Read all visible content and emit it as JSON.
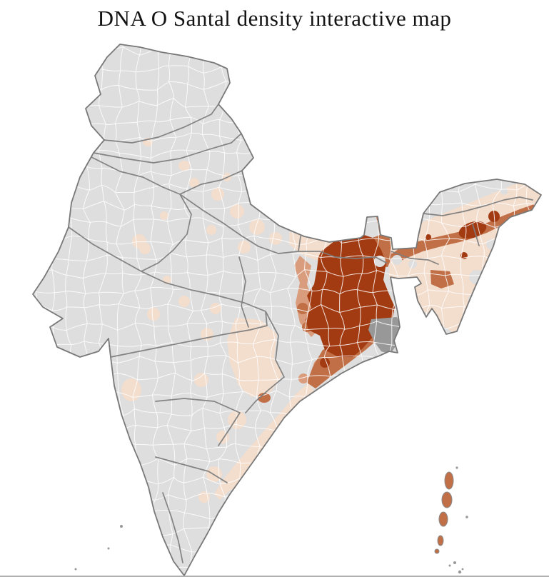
{
  "page": {
    "title": "DNA O Santal density interactive map",
    "background": "#ffffff"
  },
  "map": {
    "palette": {
      "no_data": "#dedede",
      "low": "#f3ddcd",
      "medium_low": "#d99c7c",
      "medium": "#c16f47",
      "high": "#a33b12",
      "water_delta": "#989898",
      "district_border": "#ffffff",
      "state_border": "#7d7d7d",
      "coast_border": "#787878",
      "island_border": "#8a8a8a"
    },
    "mesh": {
      "cell_size": 24,
      "jitter": 0.55,
      "edge_wobble": 6,
      "line_width": 1,
      "opacity": 0.85
    },
    "regions": [
      {
        "name": "jharkhand-west-bengal-north-odisha-core",
        "density": "high"
      },
      {
        "name": "upper-assam-districts",
        "density": "high"
      },
      {
        "name": "assam-brahmaputra-valley",
        "density": "medium"
      },
      {
        "name": "north-bengal-corridor",
        "density": "medium"
      },
      {
        "name": "coastal-odisha",
        "density": "medium"
      },
      {
        "name": "barak-valley",
        "density": "medium"
      },
      {
        "name": "andaman-islands",
        "density": "medium"
      },
      {
        "name": "west-jharkhand-fringe",
        "density": "medium_low"
      },
      {
        "name": "bihar-eastern-uttar-pradesh",
        "density": "low"
      },
      {
        "name": "chhattisgarh-vidarbha",
        "density": "low"
      },
      {
        "name": "coastal-andhra",
        "density": "low"
      },
      {
        "name": "telangana",
        "density": "low"
      },
      {
        "name": "northeast-hill-states",
        "density": "low"
      },
      {
        "name": "sundarbans-delta",
        "density": "water_delta"
      },
      {
        "name": "rest-of-india",
        "density": "no_data"
      }
    ]
  },
  "footer": {
    "divider_color": "#b0b0b0"
  }
}
